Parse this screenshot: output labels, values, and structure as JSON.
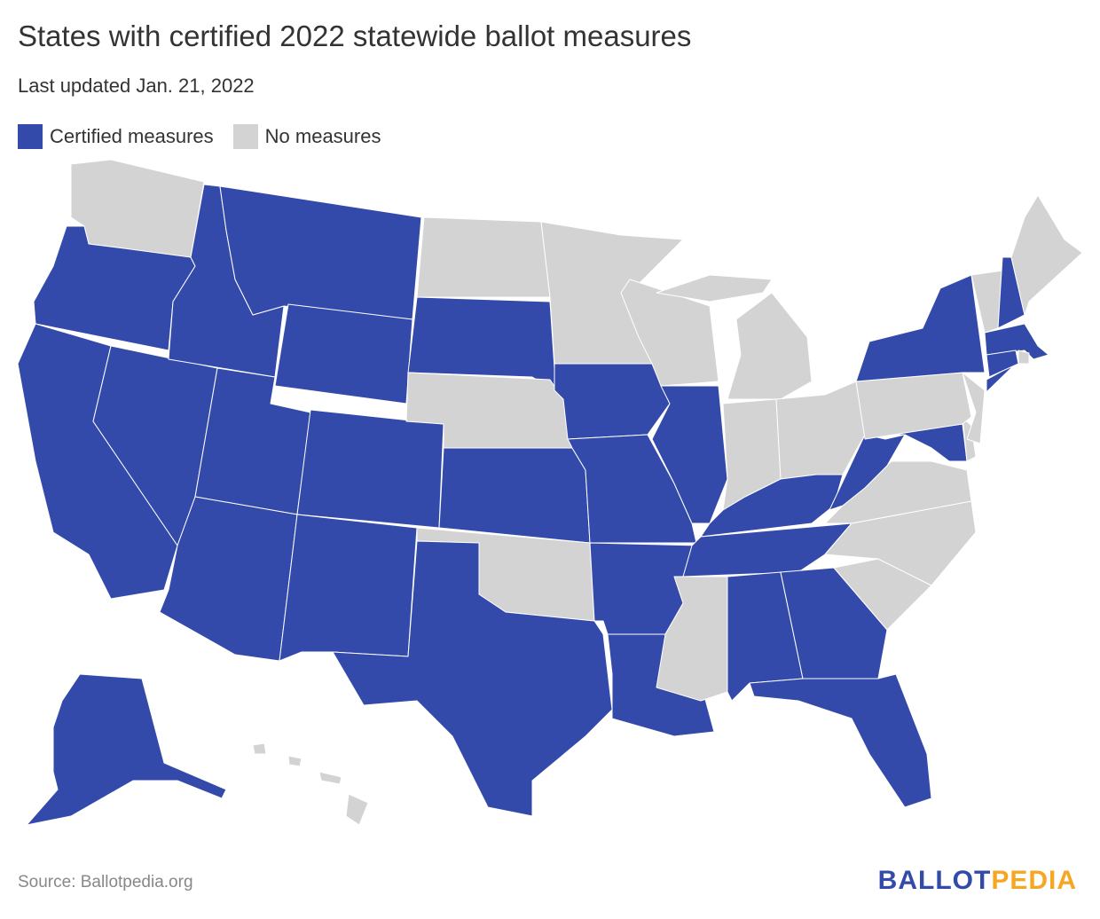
{
  "title": "States with certified 2022 statewide ballot measures",
  "subtitle": "Last updated Jan. 21, 2022",
  "legend": [
    {
      "label": "Certified measures",
      "status": "certified"
    },
    {
      "label": "No measures",
      "status": "none"
    }
  ],
  "colors": {
    "certified": "#334aab",
    "none": "#d3d3d3",
    "border": "#ffffff",
    "logo_blue": "#334aab",
    "logo_orange": "#f5a623"
  },
  "states": [
    {
      "code": "WA",
      "status": "none"
    },
    {
      "code": "OR",
      "status": "certified"
    },
    {
      "code": "CA",
      "status": "certified"
    },
    {
      "code": "NV",
      "status": "certified"
    },
    {
      "code": "ID",
      "status": "certified"
    },
    {
      "code": "MT",
      "status": "certified"
    },
    {
      "code": "WY",
      "status": "certified"
    },
    {
      "code": "UT",
      "status": "certified"
    },
    {
      "code": "CO",
      "status": "certified"
    },
    {
      "code": "AZ",
      "status": "certified"
    },
    {
      "code": "NM",
      "status": "certified"
    },
    {
      "code": "ND",
      "status": "none"
    },
    {
      "code": "SD",
      "status": "certified"
    },
    {
      "code": "NE",
      "status": "none"
    },
    {
      "code": "KS",
      "status": "certified"
    },
    {
      "code": "OK",
      "status": "none"
    },
    {
      "code": "TX",
      "status": "certified"
    },
    {
      "code": "MN",
      "status": "none"
    },
    {
      "code": "IA",
      "status": "certified"
    },
    {
      "code": "MO",
      "status": "certified"
    },
    {
      "code": "AR",
      "status": "certified"
    },
    {
      "code": "LA",
      "status": "certified"
    },
    {
      "code": "WI",
      "status": "none"
    },
    {
      "code": "IL",
      "status": "certified"
    },
    {
      "code": "MI",
      "status": "none"
    },
    {
      "code": "IN",
      "status": "none"
    },
    {
      "code": "OH",
      "status": "none"
    },
    {
      "code": "KY",
      "status": "certified"
    },
    {
      "code": "TN",
      "status": "certified"
    },
    {
      "code": "MS",
      "status": "none"
    },
    {
      "code": "AL",
      "status": "certified"
    },
    {
      "code": "GA",
      "status": "certified"
    },
    {
      "code": "FL",
      "status": "certified"
    },
    {
      "code": "SC",
      "status": "none"
    },
    {
      "code": "NC",
      "status": "none"
    },
    {
      "code": "VA",
      "status": "none"
    },
    {
      "code": "WV",
      "status": "certified"
    },
    {
      "code": "MD",
      "status": "certified"
    },
    {
      "code": "DE",
      "status": "none"
    },
    {
      "code": "PA",
      "status": "none"
    },
    {
      "code": "NJ",
      "status": "none"
    },
    {
      "code": "NY",
      "status": "certified"
    },
    {
      "code": "VT",
      "status": "none"
    },
    {
      "code": "NH",
      "status": "certified"
    },
    {
      "code": "ME",
      "status": "none"
    },
    {
      "code": "MA",
      "status": "certified"
    },
    {
      "code": "CT",
      "status": "certified"
    },
    {
      "code": "RI",
      "status": "none"
    },
    {
      "code": "AK",
      "status": "certified"
    },
    {
      "code": "HI",
      "status": "none"
    }
  ],
  "source": "Source: Ballotpedia.org",
  "logo": {
    "part1": "BALLOT",
    "part2": "PEDIA"
  }
}
